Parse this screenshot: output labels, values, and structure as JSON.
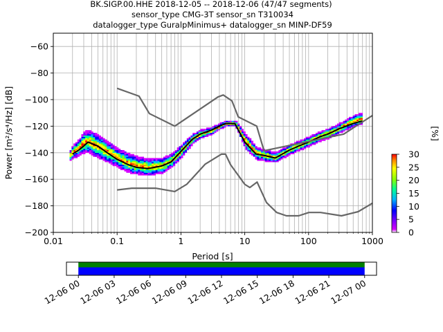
{
  "header": {
    "line1": "BK.SIGP.00.HHE   2018-12-05 -- 2018-12-06  (47/47 segments)",
    "line2": "sensor_type CMG-3T sensor_sn T310034",
    "line3": "datalogger_type GuralpMinimus+ datalogger_sn MINP-DF59"
  },
  "chart_data": [
    {
      "type": "heatmap",
      "subtype": "probabilistic-power-spectral-density",
      "xlabel": "Period [s]",
      "ylabel": "Power [m²/s⁴/Hz] [dB]",
      "xscale": "log",
      "xlim": [
        0.01,
        1000
      ],
      "ylim": [
        -200,
        -50
      ],
      "xticks": [
        0.01,
        0.1,
        1,
        10,
        100,
        1000
      ],
      "xtick_labels": [
        "0.01",
        "0.1",
        "1",
        "10",
        "100",
        "1000"
      ],
      "yticks": [
        -200,
        -180,
        -160,
        -140,
        -120,
        -100,
        -80,
        -60
      ],
      "ytick_labels": [
        "−200",
        "−180",
        "−160",
        "−140",
        "−120",
        "−100",
        "−80",
        "−60"
      ],
      "grid": true,
      "colorbar": {
        "label": "[%]",
        "range": [
          0,
          30
        ],
        "ticks": [
          0,
          5,
          10,
          15,
          20,
          25,
          30
        ],
        "colormap": [
          "#ffffff",
          "#d400ff",
          "#7a00ff",
          "#0000ff",
          "#00b4ff",
          "#00ff96",
          "#8cff00",
          "#ffff00",
          "#ff8c00",
          "#ff0000"
        ]
      },
      "series": [
        {
          "role": "mode-line",
          "color": "#000000",
          "x": [
            0.02,
            0.025,
            0.03,
            0.035,
            0.05,
            0.07,
            0.1,
            0.15,
            0.2,
            0.3,
            0.5,
            0.7,
            1,
            1.5,
            2,
            3,
            4,
            5,
            7,
            10,
            15,
            20,
            30,
            50,
            70,
            100,
            150,
            200,
            300,
            500,
            700
          ],
          "y": [
            -141,
            -138,
            -135,
            -132,
            -135,
            -140,
            -145,
            -149,
            -151,
            -152,
            -150,
            -147,
            -139,
            -130,
            -126,
            -123,
            -120,
            -118,
            -118,
            -132,
            -141,
            -142,
            -144,
            -138,
            -135,
            -132,
            -128,
            -126,
            -122,
            -118,
            -116
          ]
        },
        {
          "role": "high-noise-model",
          "color": "#666666",
          "x": [
            0.1,
            0.22,
            0.32,
            0.8,
            3.8,
            4.6,
            6.3,
            7.9,
            15.4,
            20,
            354.8,
            1000
          ],
          "y": [
            -91.5,
            -97.4,
            -110.5,
            -120,
            -98,
            -96.5,
            -101,
            -113,
            -120,
            -138.5,
            -126,
            -112
          ]
        },
        {
          "role": "low-noise-model",
          "color": "#666666",
          "x": [
            0.1,
            0.17,
            0.4,
            0.8,
            1.24,
            2.4,
            4.3,
            5,
            6,
            10,
            12,
            15.6,
            21.9,
            31.6,
            45,
            70,
            101,
            154,
            328,
            600,
            1000
          ],
          "y": [
            -168,
            -166.7,
            -166.7,
            -169.2,
            -163.7,
            -148.6,
            -141.1,
            -141.1,
            -149,
            -163.8,
            -166.2,
            -162.1,
            -177.5,
            -185,
            -187.5,
            -187.5,
            -185,
            -185,
            -187.5,
            -184.4,
            -178
          ]
        }
      ],
      "heatmap_bands": [
        {
          "x": [
            0.018,
            0.02,
            0.025,
            0.03,
            0.035,
            0.05,
            0.07,
            0.1,
            0.15,
            0.2,
            0.3,
            0.5,
            0.7,
            1,
            1.5,
            2,
            3,
            4,
            5,
            7,
            10,
            15,
            20,
            30,
            50,
            70,
            100,
            150,
            200,
            300,
            500,
            700
          ],
          "y_high": [
            -138,
            -134,
            -130,
            -124,
            -123,
            -127,
            -132,
            -137,
            -141,
            -143,
            -145,
            -144,
            -141,
            -134,
            -126,
            -123,
            -121,
            -118,
            -116,
            -116,
            -126,
            -136,
            -138,
            -140,
            -134,
            -131,
            -128,
            -124,
            -122,
            -118,
            -112,
            -110
          ],
          "y_low": [
            -146,
            -144,
            -142,
            -140,
            -140,
            -144,
            -147,
            -151,
            -155,
            -156,
            -157,
            -155,
            -151,
            -143,
            -133,
            -129,
            -126,
            -122,
            -120,
            -120,
            -137,
            -145,
            -146,
            -147,
            -141,
            -138,
            -135,
            -131,
            -129,
            -125,
            -120,
            -118
          ]
        }
      ]
    },
    {
      "type": "timeline",
      "description_source": "data availability strip",
      "xlim": [
        "2018-12-05 23:00",
        "2018-12-07 01:00"
      ],
      "xtick_labels": [
        "12-06 00",
        "12-06 03",
        "12-06 06",
        "12-06 09",
        "12-06 12",
        "12-06 15",
        "12-06 18",
        "12-06 21",
        "12-07 00"
      ],
      "bars": [
        {
          "start": "2018-12-06 00:00",
          "end": "2018-12-07 00:00",
          "color": "#008000",
          "row": "top"
        },
        {
          "start": "2018-12-06 00:00",
          "end": "2018-12-07 00:00",
          "color": "#0000ff",
          "row": "bottom"
        }
      ]
    }
  ]
}
